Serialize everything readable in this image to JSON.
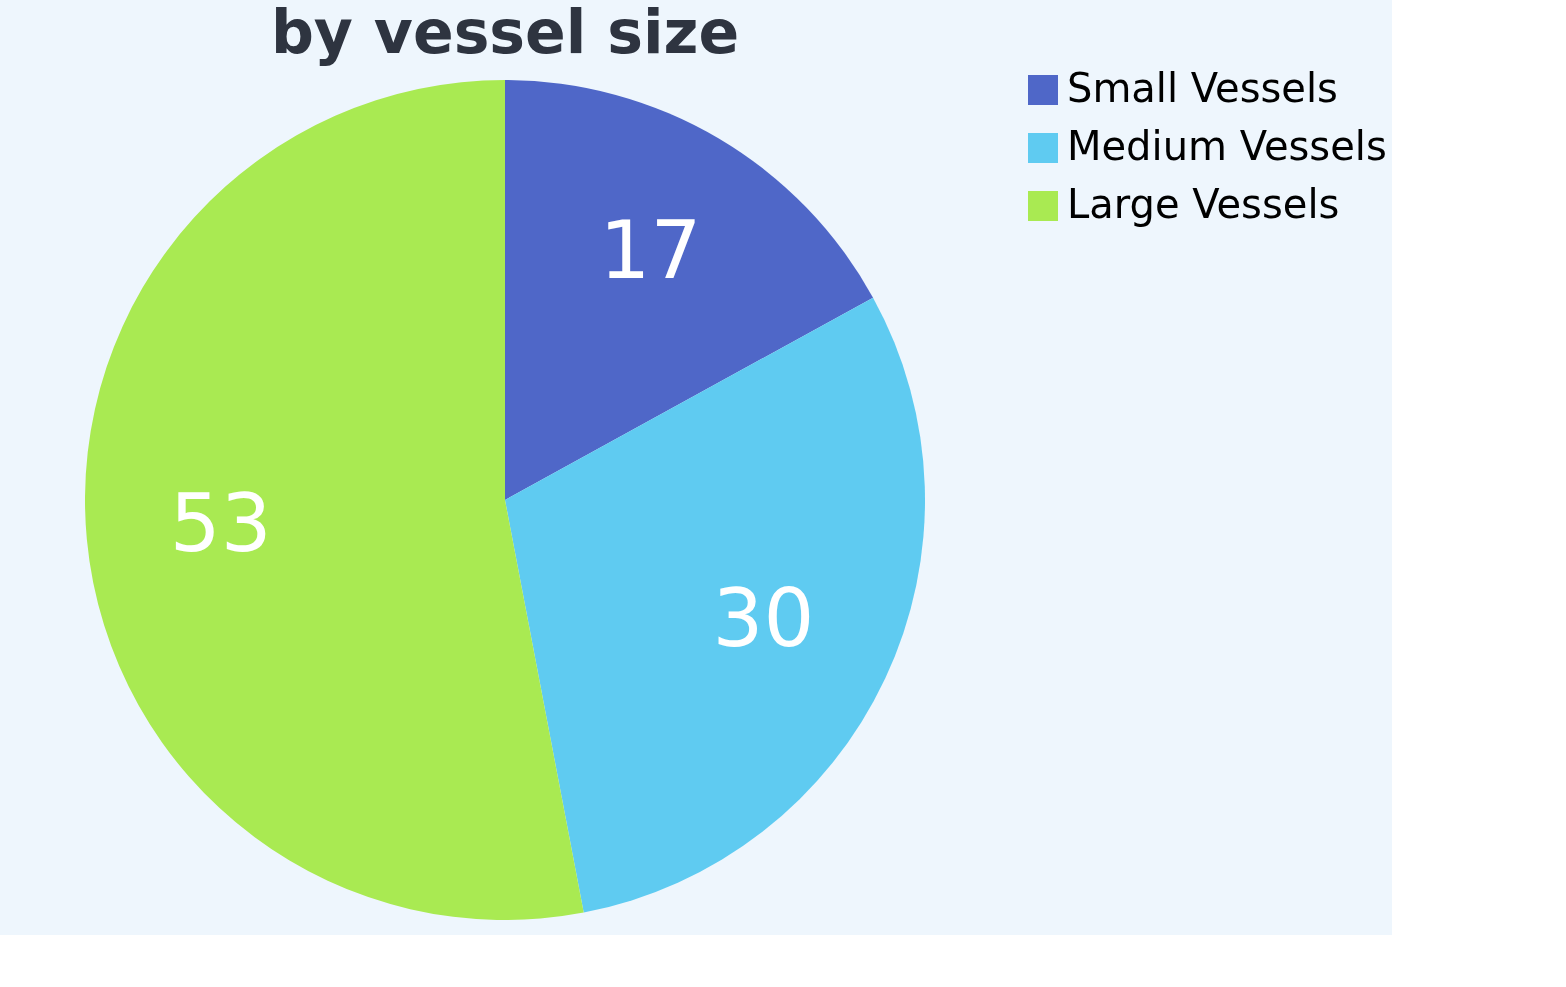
{
  "chart_data": {
    "type": "pie",
    "title": "by vessel size",
    "categories": [
      "Small Vessels",
      "Medium Vessels",
      "Large Vessels"
    ],
    "values": [
      17,
      30,
      53
    ],
    "colors": [
      "#4f67c8",
      "#5fcbf1",
      "#a9ea52"
    ],
    "data_labels": true,
    "legend": "right"
  }
}
